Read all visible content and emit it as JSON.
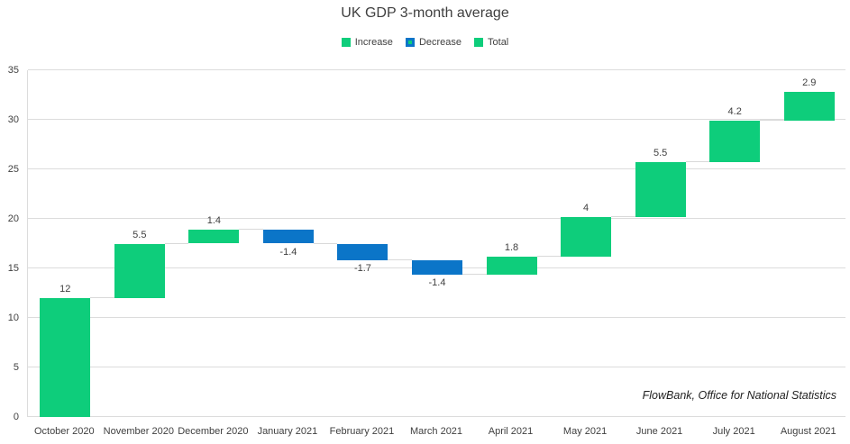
{
  "title": "UK GDP 3-month average",
  "legend": {
    "items": [
      {
        "label": "Increase",
        "type": "increase"
      },
      {
        "label": "Decrease",
        "type": "decrease"
      },
      {
        "label": "Total",
        "type": "total"
      }
    ]
  },
  "source_note": "FlowBank, Office for National Statistics",
  "colors": {
    "increase": "#0ecd7b",
    "decrease": "#0b75c8",
    "total": "#0ecd7b",
    "gridline": "#dcdcdc",
    "connector": "#d9d9d9",
    "text": "#404040"
  },
  "chart_data": {
    "type": "bar",
    "subtype": "waterfall",
    "title": "UK GDP 3-month average",
    "categories": [
      "October 2020",
      "November 2020",
      "December 2020",
      "January 2021",
      "February 2021",
      "March 2021",
      "April 2021",
      "May 2021",
      "June 2021",
      "July 2021",
      "August 2021"
    ],
    "values": [
      12,
      5.5,
      1.4,
      -1.4,
      -1.7,
      -1.4,
      1.8,
      4,
      5.5,
      4.2,
      2.9
    ],
    "value_labels": [
      "12",
      "5.5",
      "1.4",
      "-1.4",
      "-1.7",
      "-1.4",
      "1.8",
      "4",
      "5.5",
      "4.2",
      "2.9"
    ],
    "bar_types": [
      "total",
      "increase",
      "increase",
      "decrease",
      "decrease",
      "decrease",
      "increase",
      "increase",
      "increase",
      "increase",
      "increase"
    ],
    "cumulative": [
      12,
      17.5,
      18.9,
      17.5,
      15.8,
      14.4,
      16.2,
      20.2,
      25.7,
      29.9,
      32.8
    ],
    "xlabel": "",
    "ylabel": "",
    "ylim": [
      0,
      35
    ],
    "yticks": [
      0,
      5,
      10,
      15,
      20,
      25,
      30,
      35
    ],
    "grid": true,
    "legend_position": "top",
    "annotations": [
      "FlowBank, Office for National Statistics"
    ]
  }
}
